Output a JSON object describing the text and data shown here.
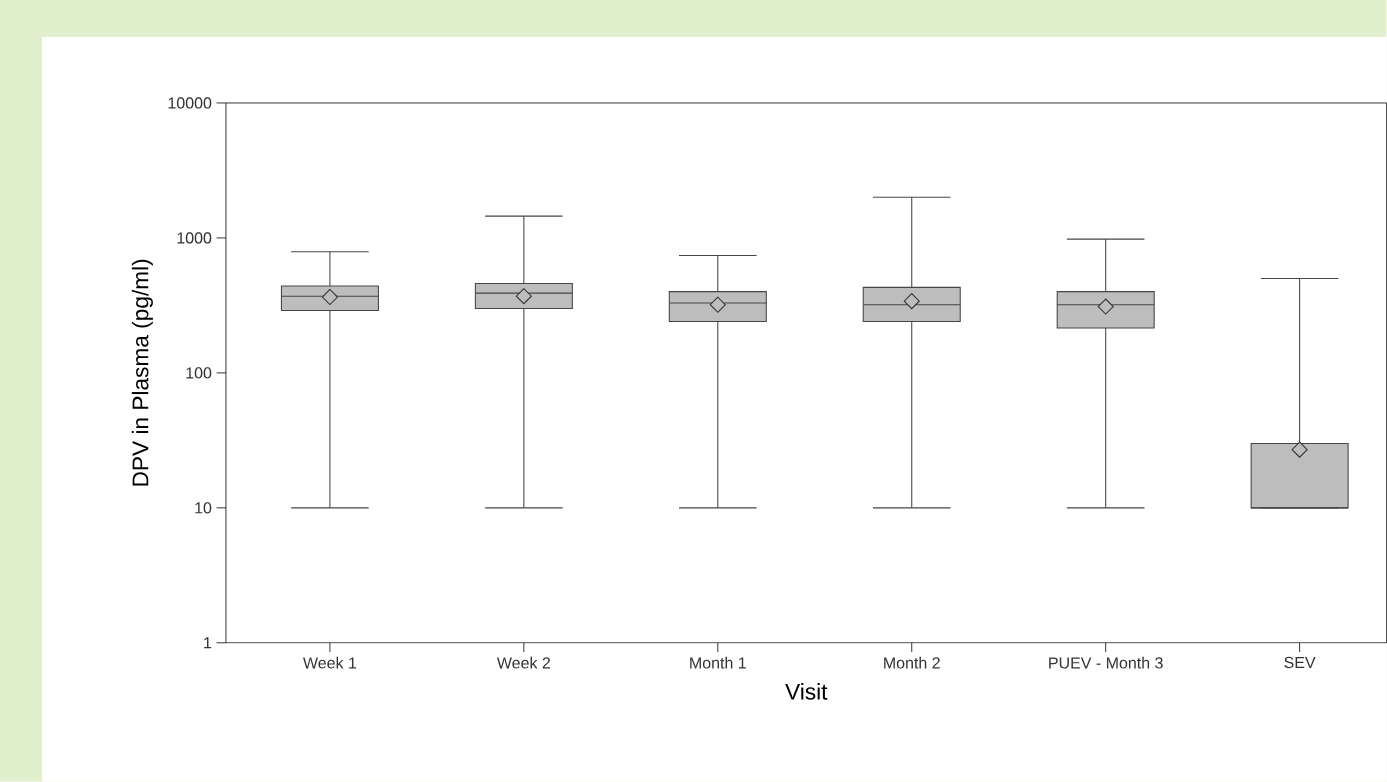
{
  "chart_data": {
    "type": "box",
    "xlabel": "Visit",
    "ylabel": "DPV in Plasma (pg/ml)",
    "categories": [
      "Week 1",
      "Week 2",
      "Month 1",
      "Month 2",
      "PUEV - Month 3",
      "SEV"
    ],
    "boxes": [
      {
        "low": 10,
        "q1": 290,
        "median": 370,
        "q3": 440,
        "high": 790,
        "mean": 365
      },
      {
        "low": 10,
        "q1": 300,
        "median": 390,
        "q3": 460,
        "high": 1450,
        "mean": 370
      },
      {
        "low": 10,
        "q1": 240,
        "median": 330,
        "q3": 400,
        "high": 740,
        "mean": 320
      },
      {
        "low": 10,
        "q1": 240,
        "median": 320,
        "q3": 430,
        "high": 2000,
        "mean": 340
      },
      {
        "low": 10,
        "q1": 215,
        "median": 320,
        "q3": 400,
        "high": 980,
        "mean": 310
      },
      {
        "low": 10,
        "q1": 10,
        "median": 10,
        "q3": 30,
        "high": 500,
        "mean": 27
      }
    ],
    "color": "#bdbdbd",
    "marker": "diamond",
    "log": true,
    "ylim": [
      1,
      10000
    ],
    "yticks": [
      1,
      10,
      100,
      1000,
      10000
    ],
    "grid": false
  }
}
